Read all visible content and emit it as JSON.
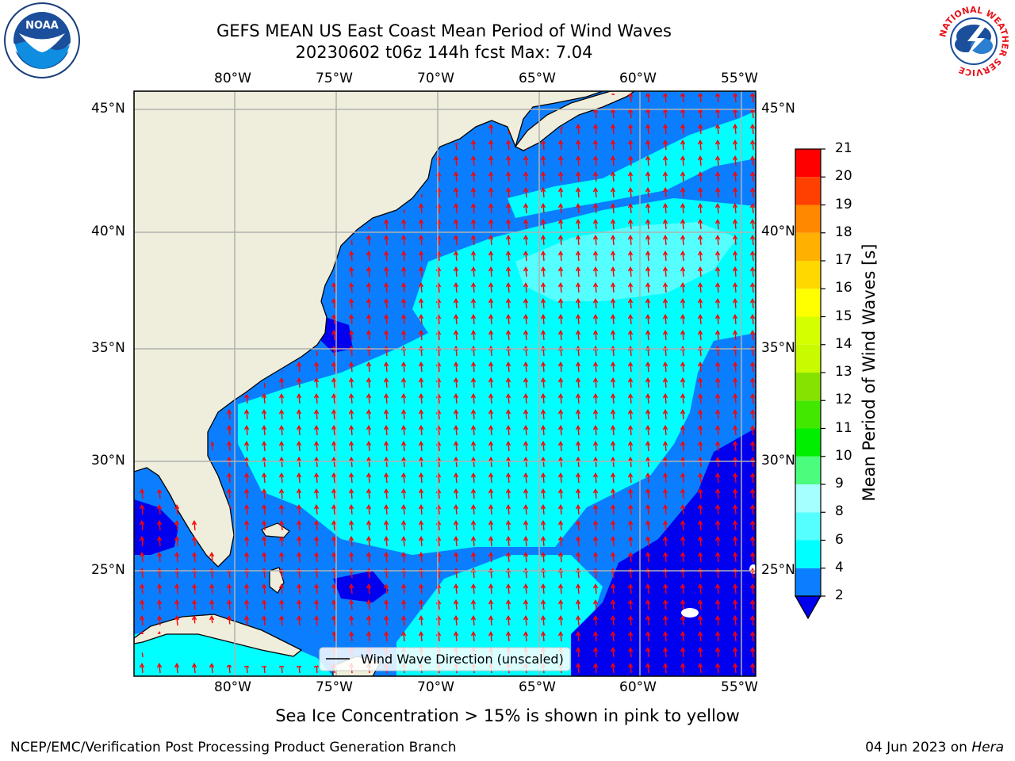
{
  "title": {
    "line1": "GEFS MEAN US East Coast Mean Period of Wind Waves",
    "line2": "20230602 t06z 144h fcst   Max: 7.04"
  },
  "logos": {
    "left": {
      "name": "noaa-logo",
      "text": "NOAA"
    },
    "right": {
      "name": "nws-logo",
      "text": "NATIONAL WEATHER SERVICE"
    }
  },
  "map": {
    "lon_labels": [
      "80°W",
      "75°W",
      "70°W",
      "65°W",
      "60°W",
      "55°W"
    ],
    "lat_labels": [
      "45°N",
      "40°N",
      "35°N",
      "30°N",
      "25°N"
    ],
    "legend": "Wind Wave Direction (unscaled)",
    "colors": {
      "land": "#efeedc",
      "sea_2_4": "#0a7eff",
      "sea_lt2": "#0000ee",
      "sea_4_6": "#00ffff",
      "sea_6_8": "#55ffff",
      "arrow": "#ff0000",
      "grid": "#b0b0b0"
    }
  },
  "colorbar": {
    "label": "Mean Period of Wind Waves [s]",
    "ticks": [
      "2",
      "4",
      "6",
      "8",
      "9",
      "10",
      "11",
      "12",
      "13",
      "14",
      "15",
      "16",
      "17",
      "18",
      "19",
      "20",
      "21"
    ],
    "colors": [
      "#0a7eff",
      "#00ffff",
      "#55ffff",
      "#a6ffff",
      "#4cfc7c",
      "#00ee00",
      "#42e800",
      "#86e200",
      "#c8fa00",
      "#d4ff00",
      "#ffff00",
      "#ffd800",
      "#ffb000",
      "#ff8800",
      "#ff4000",
      "#ff0000"
    ],
    "under_color": "#0000ee"
  },
  "caption": "Sea Ice Concentration > 15% is shown in pink to yellow",
  "footer": {
    "left": "NCEP/EMC/Verification Post Processing Product Generation Branch",
    "date": "04 Jun 2023 on ",
    "host": "Hera"
  }
}
